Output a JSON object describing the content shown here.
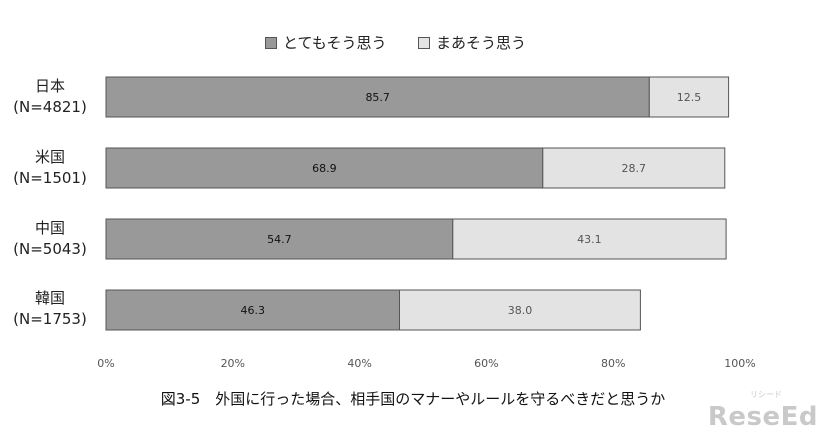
{
  "chart_data": {
    "type": "bar",
    "orientation": "horizontal",
    "stacked": true,
    "categories": [
      [
        "日本",
        "(N=4821)"
      ],
      [
        "米国",
        "(N=1501)"
      ],
      [
        "中国",
        "(N=5043)"
      ],
      [
        "韓国",
        "(N=1753)"
      ]
    ],
    "series": [
      {
        "name": "とてもそう思う",
        "values": [
          85.7,
          68.9,
          54.7,
          46.3
        ],
        "color": "#999999",
        "label_color": "#111111"
      },
      {
        "name": "まあそう思う",
        "values": [
          12.5,
          28.7,
          43.1,
          38.0
        ],
        "color": "#e3e3e3",
        "label_color": "#555555"
      }
    ],
    "data_labels": [
      [
        "85.7",
        "68.9",
        "54.7",
        "46.3"
      ],
      [
        "12.5",
        "28.7",
        "43.1",
        "38.0"
      ]
    ],
    "xlim": [
      0,
      100
    ],
    "x_ticks": [
      "0%",
      "20%",
      "40%",
      "60%",
      "80%",
      "100%"
    ],
    "legend_position": "top-center",
    "grid": false,
    "caption": "図3-5　外国に行った場合、相手国のマナーやルールを守るべきだと思うか"
  },
  "watermark": {
    "text": "ReseEd",
    "sub": "リシード"
  }
}
